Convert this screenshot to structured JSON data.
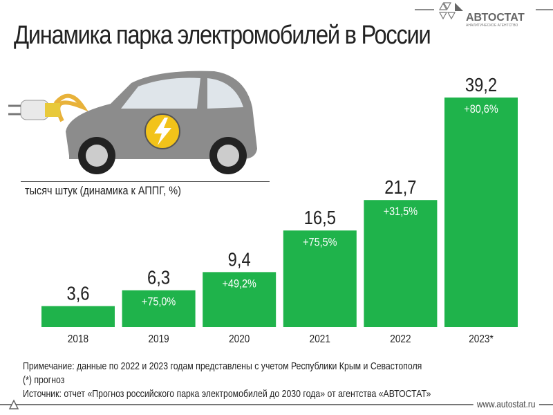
{
  "title": "Динамика парка электромобилей в России",
  "logo": {
    "name": "АВТОСТАТ",
    "tagline": "АНАЛИТИЧЕСКОЕ АГЕНТСТВО"
  },
  "unit_label": "тысяч штук (динамика к АППГ, %)",
  "colors": {
    "bar": "#1fb34b",
    "text": "#222222"
  },
  "chart_data": {
    "type": "bar",
    "title": "Динамика парка электромобилей в России",
    "ylabel": "тысяч штук (динамика к АППГ, %)",
    "categories": [
      "2018",
      "2019",
      "2020",
      "2021",
      "2022",
      "2023*"
    ],
    "values": [
      3.6,
      6.3,
      9.4,
      16.5,
      21.7,
      39.2
    ],
    "value_labels": [
      "3,6",
      "6,3",
      "9,4",
      "16,5",
      "21,7",
      "39,2"
    ],
    "growth_labels": [
      "",
      "+75,0%",
      "+49,2%",
      "+75,5%",
      "+31,5%",
      "+80,6%"
    ],
    "ylim": [
      0,
      40
    ],
    "grid": false
  },
  "notes": [
    "Примечание: данные по 2022 и 2023 годам представлены с учетом Республики Крым и Севастополя",
    "(*) прогноз",
    "Источник: отчет «Прогноз российского парка электромобилей до 2030 года» от агентства «АВТОСТАТ»"
  ],
  "footer_url": "www.autostat.ru"
}
